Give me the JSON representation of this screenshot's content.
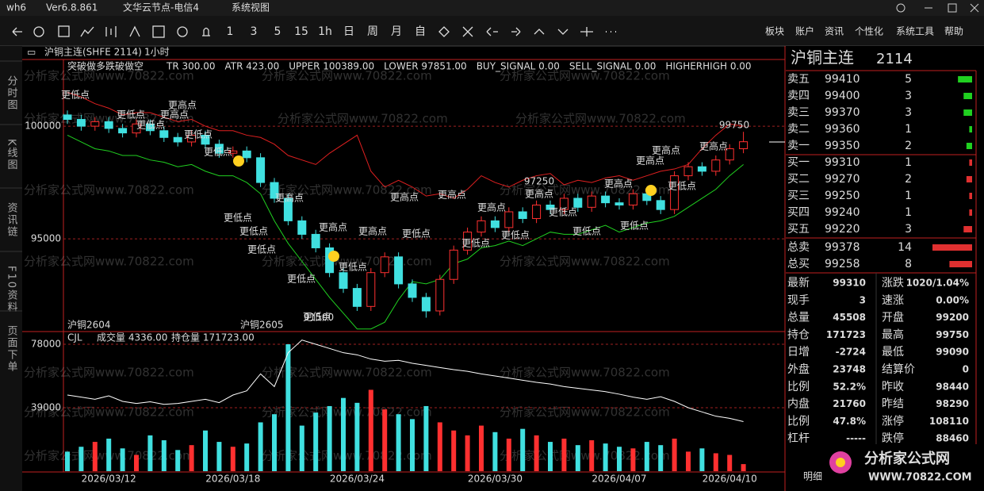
{
  "title_bar": {
    "app": "wh6",
    "version": "Ver6.8.861",
    "server": "文华云节点-电信4",
    "menu": "系统视图"
  },
  "toolbar": {
    "periods": [
      "1",
      "3",
      "5",
      "15",
      "1h",
      "日",
      "周",
      "月",
      "自"
    ],
    "menus": [
      "板块",
      "账户",
      "资讯",
      "个性化",
      "系统工具",
      "帮助"
    ]
  },
  "side_tabs": [
    "分时图",
    "K线图",
    "资讯链",
    "F10资料",
    "页面下单"
  ],
  "chart_data": {
    "type": "candlestick",
    "symbol": "沪铜主连(SHFE 2114)",
    "period": "1小时",
    "indicator": "突破做多跌破做空",
    "params": [
      {
        "text": "TR 300.00",
        "color": "#dddddd"
      },
      {
        "text": "ATR 423.00",
        "color": "#e0d040"
      },
      {
        "text": "UPPER 100389.00",
        "color": "#ff3030"
      },
      {
        "text": "LOWER 97851.00",
        "color": "#30e030"
      },
      {
        "text": "BUY_SIGNAL 0.00",
        "color": "#999999"
      },
      {
        "text": "SELL_SIGNAL 0.00",
        "color": "#ff5050"
      },
      {
        "text": "HIGHERHIGH 0.00",
        "color": "#ff5050"
      }
    ],
    "ylim": [
      90990,
      102960
    ],
    "yticks": [
      100000,
      95000
    ],
    "candles": [
      [
        100500,
        100700,
        100100,
        100300
      ],
      [
        100300,
        100500,
        99800,
        100000
      ],
      [
        100000,
        100400,
        99800,
        100200
      ],
      [
        100200,
        100400,
        99700,
        99900
      ],
      [
        99900,
        100100,
        99500,
        99700
      ],
      [
        99700,
        100300,
        99500,
        100100
      ],
      [
        100100,
        100300,
        99600,
        99800
      ],
      [
        99800,
        100000,
        99300,
        99500
      ],
      [
        99500,
        99700,
        99100,
        99300
      ],
      [
        99300,
        99800,
        99100,
        99600
      ],
      [
        99600,
        99800,
        99000,
        99200
      ],
      [
        99200,
        99400,
        98600,
        98800
      ],
      [
        98800,
        99100,
        98600,
        98900
      ],
      [
        98900,
        99100,
        98400,
        98600
      ],
      [
        98600,
        98800,
        97300,
        97500
      ],
      [
        97500,
        97700,
        96600,
        96800
      ],
      [
        96800,
        97000,
        95600,
        95800
      ],
      [
        95800,
        96000,
        95000,
        95200
      ],
      [
        95200,
        95400,
        94400,
        94600
      ],
      [
        94600,
        94800,
        93300,
        93500
      ],
      [
        93500,
        93700,
        92600,
        92800
      ],
      [
        92800,
        93000,
        91800,
        92000
      ],
      [
        92000,
        93700,
        91800,
        93500
      ],
      [
        93500,
        94400,
        93300,
        94200
      ],
      [
        94200,
        94400,
        92800,
        93000
      ],
      [
        93000,
        93200,
        92200,
        92400
      ],
      [
        92400,
        92600,
        91500,
        91800
      ],
      [
        91800,
        93400,
        91600,
        93200
      ],
      [
        93200,
        94700,
        93000,
        94500
      ],
      [
        94500,
        95500,
        94300,
        95300
      ],
      [
        95300,
        96000,
        95100,
        95800
      ],
      [
        95800,
        96000,
        95300,
        95500
      ],
      [
        95500,
        96400,
        95300,
        96200
      ],
      [
        96200,
        96400,
        95700,
        95900
      ],
      [
        95900,
        96700,
        95700,
        96500
      ],
      [
        96500,
        96700,
        96100,
        96300
      ],
      [
        96300,
        97000,
        96100,
        96800
      ],
      [
        96800,
        97000,
        96200,
        96400
      ],
      [
        96400,
        97100,
        96200,
        96900
      ],
      [
        96900,
        97100,
        96400,
        96600
      ],
      [
        96600,
        96800,
        96300,
        96500
      ],
      [
        96500,
        97200,
        96300,
        97000
      ],
      [
        97000,
        97200,
        96500,
        96700
      ],
      [
        96700,
        96900,
        96100,
        96300
      ],
      [
        96300,
        98000,
        96100,
        97800
      ],
      [
        97800,
        98400,
        97600,
        98200
      ],
      [
        98200,
        98400,
        97800,
        98000
      ],
      [
        98000,
        98700,
        97800,
        98500
      ],
      [
        98500,
        99200,
        98300,
        99000
      ],
      [
        99000,
        99750,
        98800,
        99310
      ]
    ],
    "upper": [
      101500,
      101300,
      101000,
      100800,
      100500,
      100600,
      100600,
      100400,
      100200,
      100300,
      100000,
      99800,
      99800,
      99600,
      99500,
      99200,
      98700,
      98500,
      98300,
      98800,
      99200,
      99600,
      98000,
      97300,
      97600,
      97300,
      96900,
      97000,
      96800,
      97200,
      97800,
      97500,
      97300,
      97600,
      97800,
      97900,
      97400,
      97600,
      97500,
      97700,
      97800,
      97600,
      97800,
      98000,
      98100,
      98300,
      99000,
      99600,
      100100,
      100000
    ],
    "lower": [
      99600,
      99300,
      99000,
      98900,
      98700,
      98700,
      98500,
      98400,
      98200,
      98300,
      98000,
      97800,
      97800,
      97500,
      97000,
      95800,
      94800,
      94000,
      93200,
      92400,
      91700,
      91000,
      91000,
      91300,
      92300,
      93100,
      93000,
      93200,
      93900,
      94100,
      94600,
      94700,
      94900,
      94700,
      95000,
      95300,
      95200,
      95200,
      95400,
      95600,
      95300,
      95500,
      95700,
      95800,
      96000,
      96400,
      96800,
      97200,
      97800,
      98300
    ],
    "up_color": "#ff3030",
    "down_color": "#40e0e0",
    "annotations": {
      "higher": "更高点",
      "lower": "更低点"
    },
    "contracts": [
      "沪铜2604",
      "沪铜2605"
    ],
    "price_marks": [
      91500,
      97250,
      99750
    ],
    "x_labels": [
      "2026/03/12",
      "2026/03/18",
      "2026/03/24",
      "2026/03/30",
      "2026/04/07",
      "2026/04/10"
    ],
    "volume_pane": {
      "name": "CJL",
      "volume_label": "成交量 4336.00",
      "oi_label": "持仓量 171723.00",
      "ylim": [
        0,
        85800
      ],
      "yticks": [
        78000,
        39000
      ],
      "y2lim": [
        160000,
        193000
      ],
      "volume": [
        12000,
        15000,
        18000,
        20000,
        14000,
        10000,
        22000,
        19000,
        13000,
        16000,
        25000,
        18000,
        15000,
        17000,
        30000,
        35000,
        78000,
        28000,
        36000,
        40000,
        45000,
        42000,
        50000,
        38000,
        35000,
        32000,
        40000,
        30000,
        25000,
        22000,
        28000,
        24000,
        20000,
        26000,
        22000,
        18000,
        20000,
        16000,
        19000,
        17000,
        15000,
        14000,
        18000,
        16000,
        20000,
        12000,
        14000,
        11000,
        10000,
        4336
      ],
      "open_interest": [
        178000,
        177500,
        177000,
        177800,
        176500,
        176000,
        176400,
        175800,
        176000,
        176500,
        177000,
        176200,
        178000,
        179000,
        183000,
        180000,
        188000,
        191000,
        190000,
        189000,
        188000,
        187500,
        186500,
        186000,
        186200,
        185500,
        185000,
        184500,
        184000,
        183600,
        183000,
        182500,
        182000,
        181500,
        181000,
        180600,
        180000,
        179600,
        179200,
        178800,
        178200,
        177500,
        177000,
        177600,
        176500,
        175000,
        174000,
        173000,
        172500,
        171723
      ]
    }
  },
  "quote_panel": {
    "name": "沪铜主连",
    "code": "2114",
    "qty_max": 14,
    "asks": [
      {
        "label": "卖五",
        "price": 99410,
        "qty": 5,
        "color": "#ff3030"
      },
      {
        "label": "卖四",
        "price": 99400,
        "qty": 3,
        "color": "#ff3030"
      },
      {
        "label": "卖三",
        "price": 99370,
        "qty": 3,
        "color": "#ff3030"
      },
      {
        "label": "卖二",
        "price": 99360,
        "qty": 1,
        "color": "#ff3030"
      },
      {
        "label": "卖一",
        "price": 99350,
        "qty": 2,
        "color": "#ffffff"
      }
    ],
    "bids": [
      {
        "label": "买一",
        "price": 99310,
        "qty": 1,
        "color": "#ffffff"
      },
      {
        "label": "买二",
        "price": 99270,
        "qty": 2,
        "color": "#ff3030"
      },
      {
        "label": "买三",
        "price": 99250,
        "qty": 1,
        "color": "#ff3030"
      },
      {
        "label": "买四",
        "price": 99240,
        "qty": 1,
        "color": "#ff3030"
      },
      {
        "label": "买五",
        "price": 99220,
        "qty": 3,
        "color": "#ff3030"
      }
    ],
    "totals": [
      {
        "label": "总卖",
        "price": 99378,
        "qty": 14,
        "color": "#ff3030"
      },
      {
        "label": "总买",
        "price": 99258,
        "qty": 8,
        "color": "#ff3030"
      }
    ],
    "stats_left": [
      {
        "label": "最新",
        "value": 99310,
        "color": "#ff3030"
      },
      {
        "label": "现手",
        "value": 3,
        "color": "#e0d040"
      },
      {
        "label": "总量",
        "value": 45508,
        "color": "#e0d040"
      },
      {
        "label": "持仓",
        "value": 171723,
        "color": "#e0d040"
      },
      {
        "label": "日增",
        "value": -2724,
        "color": "#e0d040"
      },
      {
        "label": "外盘",
        "value": 23748,
        "color": "#e0d040"
      },
      {
        "label": "比例",
        "value": "52.2%",
        "color": "#e0d040"
      },
      {
        "label": "内盘",
        "value": 21760,
        "color": "#e0d040"
      },
      {
        "label": "比例",
        "value": "47.8%",
        "color": "#e0d040"
      },
      {
        "label": "杠杆",
        "value": "-----",
        "color": "#aaaaaa"
      }
    ],
    "stats_right": [
      {
        "label": "涨跌",
        "value": "1020/1.04%",
        "color": "#ff3030"
      },
      {
        "label": "速涨",
        "value": "0.00%",
        "color": "#ffffff"
      },
      {
        "label": "开盘",
        "value": 99200,
        "color": "#ff3030"
      },
      {
        "label": "最高",
        "value": 99750,
        "color": "#ff3030"
      },
      {
        "label": "最低",
        "value": 99090,
        "color": "#ff3030"
      },
      {
        "label": "结算价",
        "value": 0,
        "color": "#ffffff"
      },
      {
        "label": "昨收",
        "value": 98440,
        "color": "#ffffff"
      },
      {
        "label": "昨结",
        "value": 98290,
        "color": "#ffffff"
      },
      {
        "label": "涨停",
        "value": 108110,
        "color": "#ff3030"
      },
      {
        "label": "跌停",
        "value": 88460,
        "color": "#30e030"
      }
    ],
    "detail_tab": "明细"
  },
  "watermark": "分析家公式网www.70822.com",
  "logo": {
    "title": "分析家公式网",
    "url": "WWW.70822.COM"
  }
}
